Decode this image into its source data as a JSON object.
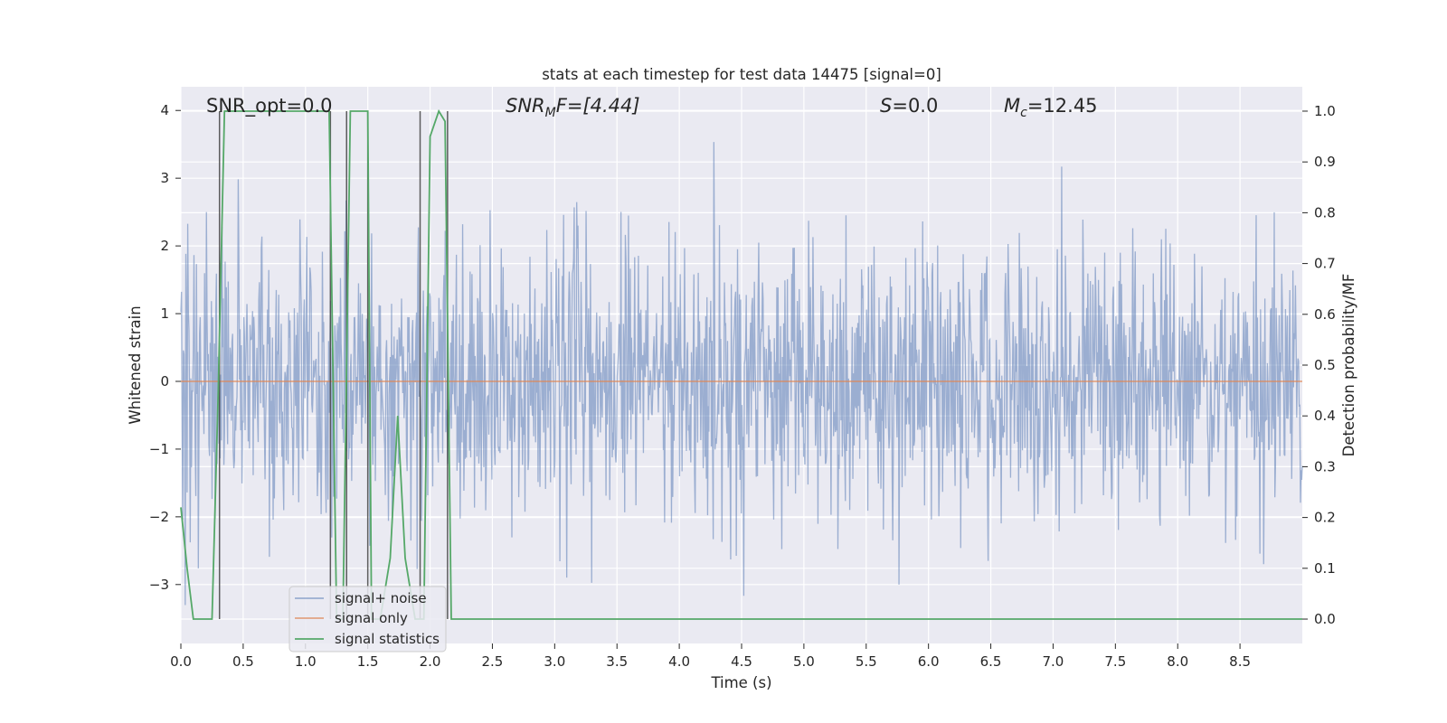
{
  "chart_data": {
    "type": "line",
    "title": "stats at each timestep for test data 14475 [signal=0]",
    "xlabel": "Time (s)",
    "ylabel": "Whitened strain",
    "ylabel_right": "Detection probability/MF",
    "xlim": [
      0.0,
      9.0
    ],
    "ylim": [
      -3.87,
      4.35
    ],
    "ylim_right": [
      -0.048,
      1.048
    ],
    "xticks": [
      "0.0",
      "0.5",
      "1.0",
      "1.5",
      "2.0",
      "2.5",
      "3.0",
      "3.5",
      "4.0",
      "4.5",
      "5.0",
      "5.5",
      "6.0",
      "6.5",
      "7.0",
      "7.5",
      "8.0",
      "8.5"
    ],
    "yticks": [
      "4",
      "3",
      "2",
      "1",
      "0",
      "−1",
      "−2",
      "−3"
    ],
    "yticks_right": [
      "1.0",
      "0.9",
      "0.8",
      "0.7",
      "0.6",
      "0.5",
      "0.4",
      "0.3",
      "0.2",
      "0.1",
      "0.0"
    ],
    "annotations": {
      "snr_opt": "SNR_opt=0.0",
      "snr_mf_main": "SNR",
      "snr_mf_sub": "M",
      "snr_mf_rest": "F=[4.44]",
      "s_main": "S",
      "s_rest": "=0.0",
      "mc_main": "M",
      "mc_sub": "c",
      "mc_rest": "=12.45"
    },
    "legend": {
      "position": "lower-left",
      "entries": [
        "signal+ noise",
        "signal only",
        "signal statistics"
      ]
    },
    "series": [
      {
        "name": "signal+ noise",
        "color": "#4c72b0",
        "noise": {
          "samples": 1800,
          "seed": 14475,
          "sigma": 1.0,
          "min": -3.55,
          "max": 4.0
        }
      },
      {
        "name": "signal only",
        "color": "#dd8452",
        "value": 0.0
      },
      {
        "name": "signal statistics",
        "color": "#55a868",
        "axis": "right",
        "x": [
          0.0,
          0.05,
          0.1,
          0.25,
          0.3,
          0.35,
          0.38,
          0.6,
          1.0,
          1.19,
          1.25,
          1.3,
          1.36,
          1.38,
          1.5,
          1.53,
          1.6,
          1.68,
          1.74,
          1.8,
          1.88,
          1.95,
          2.0,
          2.07,
          2.12,
          2.17,
          2.22,
          3.0,
          5.0,
          7.0,
          9.0
        ],
        "y": [
          0.22,
          0.1,
          0.0,
          0.0,
          0.45,
          1.0,
          1.0,
          1.0,
          1.0,
          1.0,
          0.0,
          0.0,
          1.0,
          1.0,
          1.0,
          0.0,
          0.0,
          0.12,
          0.4,
          0.12,
          0.0,
          0.0,
          0.95,
          1.0,
          0.98,
          0.0,
          0.0,
          0.0,
          0.0,
          0.0,
          0.0
        ]
      },
      {
        "name": "vertical markers",
        "color": "#444444",
        "x": [
          0.31,
          1.33,
          1.92,
          2.14,
          1.2,
          1.5
        ]
      }
    ]
  }
}
